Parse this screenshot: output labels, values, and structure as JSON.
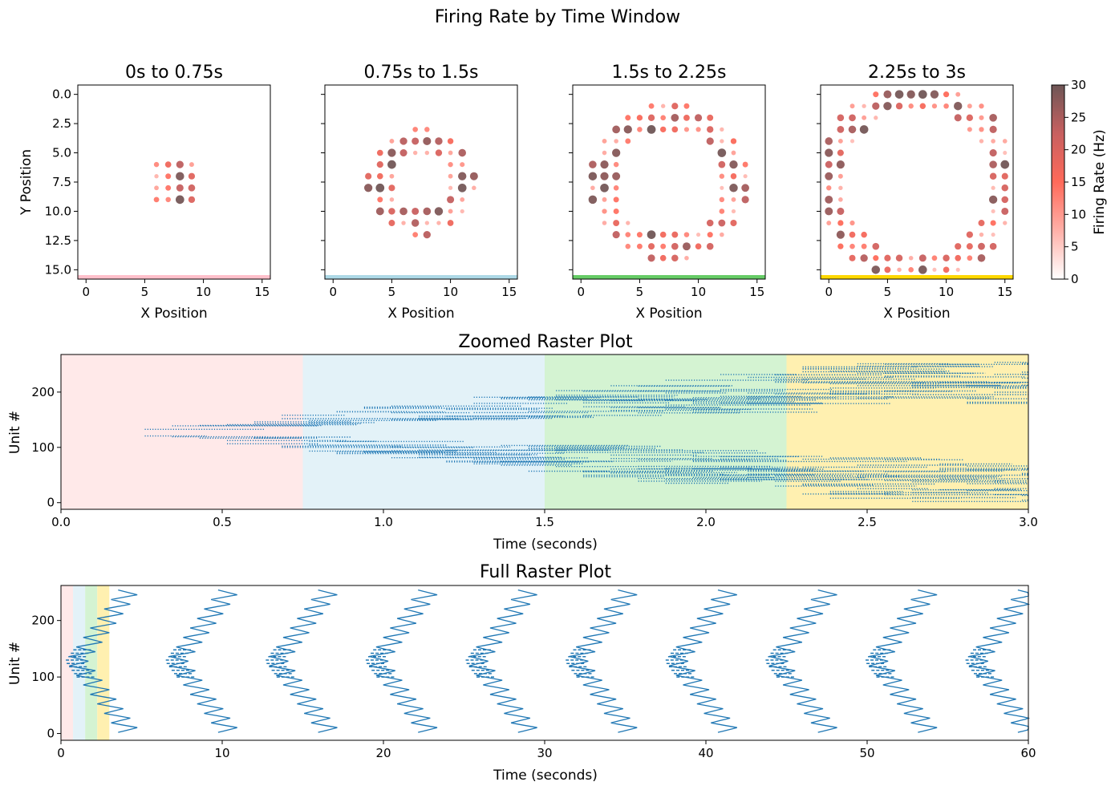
{
  "figure": {
    "title": "Firing Rate by Time Window"
  },
  "chart_data": [
    {
      "type": "scatter",
      "title": "0s to 0.75s",
      "xlabel": "X Position",
      "ylabel": "Y Position",
      "xlim": [
        -0.7,
        15.7
      ],
      "ylim": [
        15.8,
        -0.8
      ],
      "xticks": [
        "0",
        "5",
        "10",
        "15"
      ],
      "yticks": [
        "0.0",
        "2.5",
        "5.0",
        "7.5",
        "10.0",
        "12.5",
        "15.0"
      ],
      "window_color": "#ffc0cb",
      "ring_inner_radius": 0,
      "ring_outer_radius": 2.2
    },
    {
      "type": "scatter",
      "title": "0.75s to 1.5s",
      "xlabel": "X Position",
      "ylabel": "",
      "xlim": [
        -0.7,
        15.7
      ],
      "ylim": [
        15.8,
        -0.8
      ],
      "xticks": [
        "0",
        "5",
        "10",
        "15"
      ],
      "yticks": [],
      "window_color": "#add8e6",
      "ring_inner_radius": 2.4,
      "ring_outer_radius": 4.7
    },
    {
      "type": "scatter",
      "title": "1.5s to 2.25s",
      "xlabel": "X Position",
      "ylabel": "",
      "xlim": [
        -0.7,
        15.7
      ],
      "ylim": [
        15.8,
        -0.8
      ],
      "xticks": [
        "0",
        "5",
        "10",
        "15"
      ],
      "yticks": [],
      "window_color": "#66cc66",
      "ring_inner_radius": 4.5,
      "ring_outer_radius": 6.8
    },
    {
      "type": "scatter",
      "title": "2.25s to 3s",
      "xlabel": "X Position",
      "ylabel": "",
      "xlim": [
        -0.7,
        15.7
      ],
      "ylim": [
        15.8,
        -0.8
      ],
      "xticks": [
        "0",
        "5",
        "10",
        "15"
      ],
      "yticks": [],
      "window_color": "#ffd700",
      "ring_inner_radius": 6.2,
      "ring_outer_radius": 8.7
    },
    {
      "type": "colorbar",
      "label": "Firing Rate (Hz)",
      "range": [
        0,
        30
      ],
      "ticks": [
        "0",
        "5",
        "10",
        "15",
        "20",
        "25",
        "30"
      ],
      "colormap": [
        "#ffffff",
        "#ffb0a8",
        "#ff6a5a",
        "#c86060",
        "#6e5656"
      ]
    },
    {
      "type": "raster",
      "title": "Zoomed Raster Plot",
      "xlabel": "Time (seconds)",
      "ylabel": "Unit #",
      "xlim": [
        0,
        3.0
      ],
      "ylim": [
        -12,
        268
      ],
      "xticks": [
        "0.0",
        "0.5",
        "1.0",
        "1.5",
        "2.0",
        "2.5",
        "3.0"
      ],
      "yticks": [
        "0",
        "100",
        "200"
      ],
      "spike_color": "#1f77b4",
      "windows": [
        {
          "start": 0,
          "end": 0.75,
          "color": "#ffe9e9"
        },
        {
          "start": 0.75,
          "end": 1.5,
          "color": "#e3f2f8"
        },
        {
          "start": 1.5,
          "end": 2.25,
          "color": "#d4f3d2"
        },
        {
          "start": 2.25,
          "end": 3.0,
          "color": "#fff0b0"
        }
      ]
    },
    {
      "type": "raster",
      "title": "Full Raster Plot",
      "xlabel": "Time (seconds)",
      "ylabel": "Unit #",
      "xlim": [
        0,
        60
      ],
      "ylim": [
        -12,
        262
      ],
      "xticks": [
        "0",
        "10",
        "20",
        "30",
        "40",
        "50",
        "60"
      ],
      "yticks": [
        "0",
        "100",
        "200"
      ],
      "spike_color": "#1f77b4",
      "wave_period_s": 6.2,
      "windows": [
        {
          "start": 0,
          "end": 0.75,
          "color": "#ffe9e9"
        },
        {
          "start": 0.75,
          "end": 1.5,
          "color": "#e3f2f8"
        },
        {
          "start": 1.5,
          "end": 2.25,
          "color": "#d4f3d2"
        },
        {
          "start": 2.25,
          "end": 3.0,
          "color": "#fff0b0"
        }
      ]
    }
  ]
}
